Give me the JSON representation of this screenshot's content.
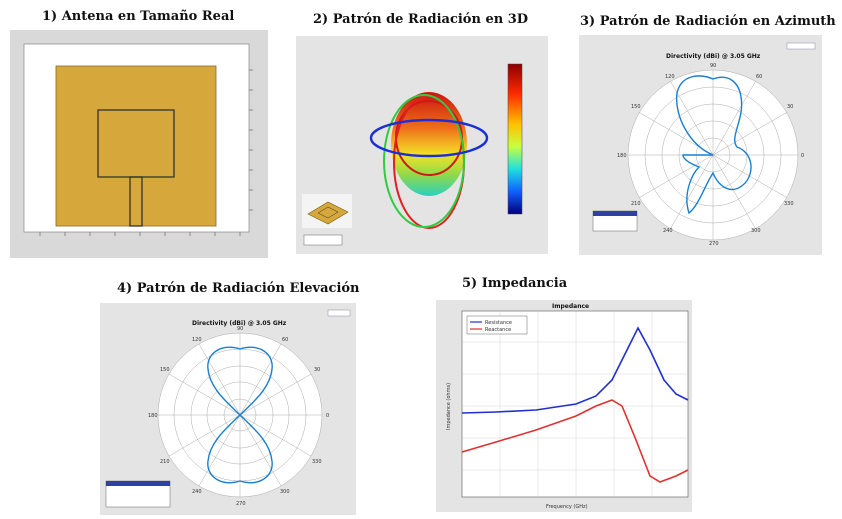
{
  "titles": {
    "p1": "1) Antena en Tamaño Real",
    "p2": "2) Patrón de Radiación en 3D",
    "p3": "3) Patrón de Radiación en Azimuth",
    "p4": "4) Patrón de Radiación Elevación",
    "p5": "5) Impedancia"
  },
  "azimuth": {
    "plot_title": "Directivity (dBi) @ 3.05 GHz",
    "angles": [
      "90",
      "60",
      "30",
      "0",
      "330",
      "300",
      "270",
      "240",
      "210",
      "180",
      "150",
      "120"
    ]
  },
  "elevation": {
    "plot_title": "Directivity (dBi) @ 3.05 GHz",
    "angles": [
      "90",
      "60",
      "30",
      "0",
      "330",
      "300",
      "270",
      "240",
      "210",
      "180",
      "150",
      "120"
    ]
  },
  "impedance": {
    "plot_title": "Impedance",
    "xlabel": "Frequency (GHz)",
    "ylabel": "Impedance (ohms)",
    "legend": [
      "Resistance",
      "Reactance"
    ],
    "colors": {
      "resistance": "#1f2fd0",
      "reactance": "#e03030"
    }
  }
}
